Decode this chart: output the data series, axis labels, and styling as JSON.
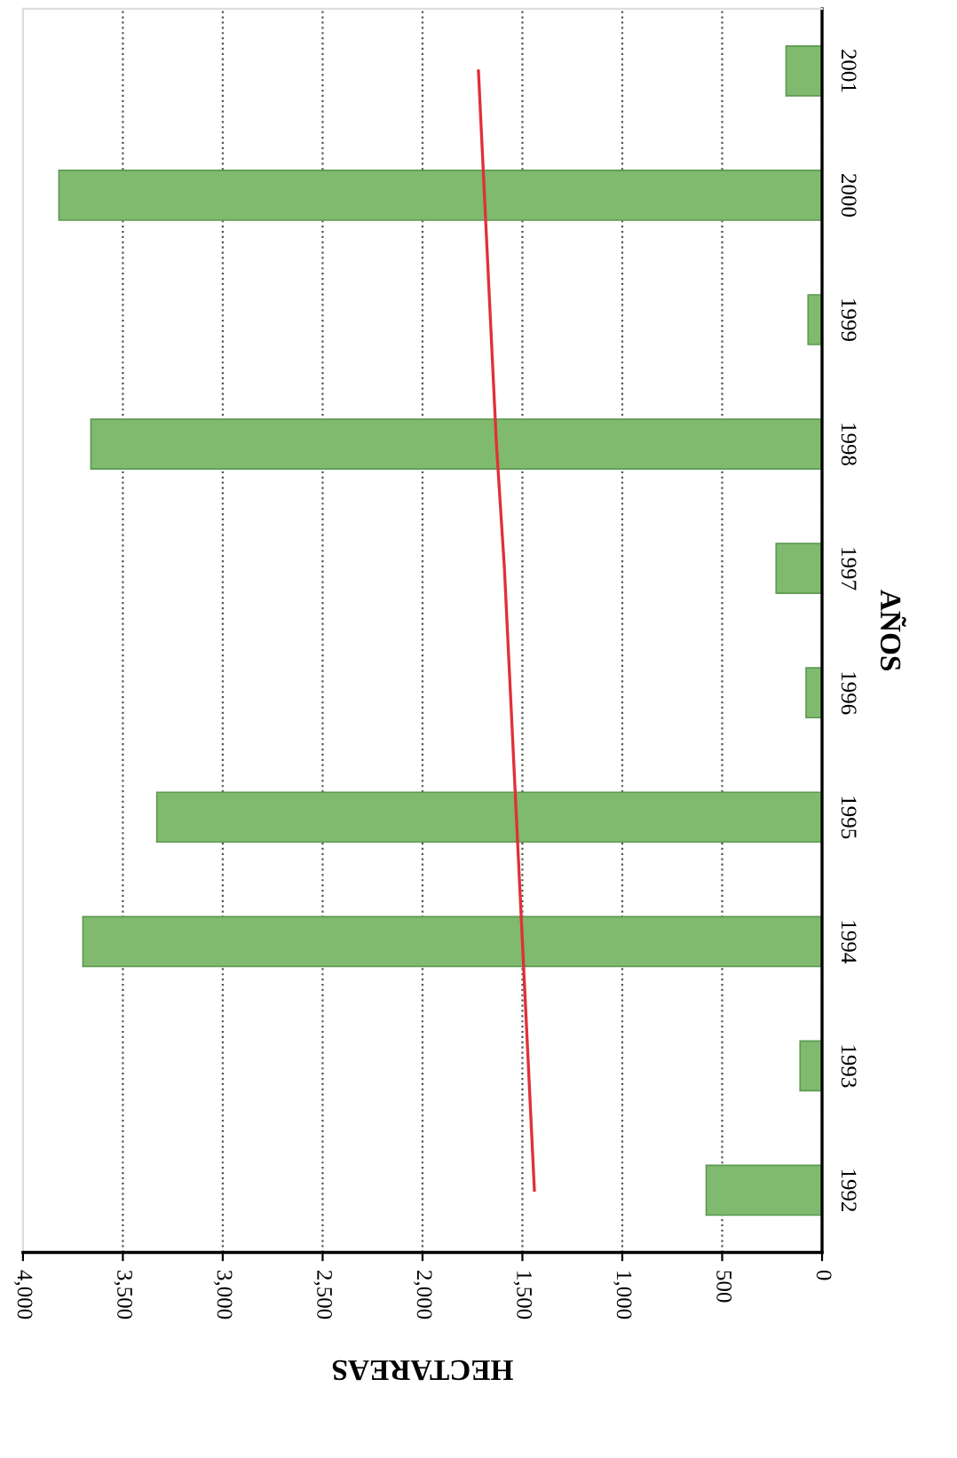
{
  "chart_data": {
    "type": "bar",
    "orientation": "horizontal",
    "categories": [
      "2001",
      "2000",
      "1999",
      "1998",
      "1997",
      "1996",
      "1995",
      "1994",
      "1993",
      "1992"
    ],
    "series": [
      {
        "color": "#7fba6f",
        "values": [
          180,
          3820,
          70,
          3660,
          230,
          80,
          3330,
          3700,
          110,
          580
        ]
      },
      {
        "type": "line",
        "color": "#e0303a",
        "values": [
          1720,
          1690,
          1660,
          1630,
          1590,
          1560,
          1530,
          1500,
          1470,
          1440
        ]
      }
    ],
    "xlim": [
      4000,
      0
    ],
    "xticks": [
      {
        "value": 4000,
        "label": "4,000"
      },
      {
        "value": 3500,
        "label": "3,500"
      },
      {
        "value": 3000,
        "label": "3,000"
      },
      {
        "value": 2500,
        "label": "2,500"
      },
      {
        "value": 2000,
        "label": "2,000"
      },
      {
        "value": 1500,
        "label": "1,500"
      },
      {
        "value": 1000,
        "label": "1,000"
      },
      {
        "value": 500,
        "label": "500"
      },
      0
    ],
    "xlabel": "HECTAREAS",
    "ylabel": "AÑOS",
    "grid": "x"
  }
}
